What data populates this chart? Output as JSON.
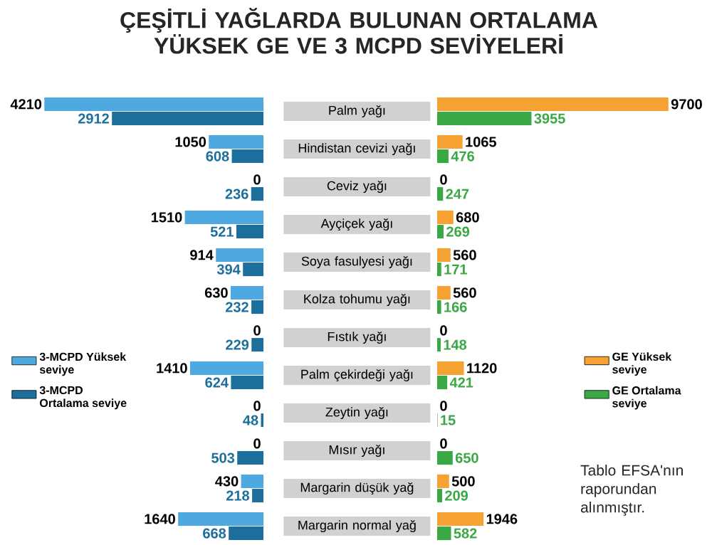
{
  "chart_data": [
    {
      "type": "bar",
      "orientation": "horizontal",
      "title": "ÇEŞİTLİ YAĞLARDA BULUNAN ORTALAMA YÜKSEK GE VE 3 MCPD SEVİYELERİ",
      "categories": [
        "Palm yağı",
        "Hindistan cevizi yağı",
        "Ceviz yağı",
        "Ayçiçek yağı",
        "Soya fasulyesi yağı",
        "Kolza tohumu yağı",
        "Fıstık yağı",
        "Palm çekirdeği yağı",
        "Zeytin yağı",
        "Mısır yağı",
        "Margarin düşük yağ",
        "Margarin normal yağ"
      ],
      "series": [
        {
          "name": "3-MCPD Yüksek seviye",
          "color": "#4fa9e1",
          "values": [
            4210,
            1050,
            0,
            1510,
            914,
            630,
            0,
            1410,
            0,
            0,
            430,
            1640
          ]
        },
        {
          "name": "3-MCPD Ortalama seviye",
          "color": "#1c6e9c",
          "values": [
            2912,
            608,
            236,
            521,
            394,
            232,
            229,
            624,
            48,
            503,
            218,
            668
          ]
        }
      ],
      "data_labels": true,
      "legend": "left",
      "tick_labels": "y"
    },
    {
      "type": "bar",
      "orientation": "horizontal",
      "categories": [
        null,
        null,
        null,
        null,
        null,
        null,
        null,
        null,
        null,
        null,
        null,
        null
      ],
      "series": [
        {
          "name": "GE Yüksek seviye",
          "color": "#f6a233",
          "values": [
            9700,
            1065,
            0,
            680,
            560,
            560,
            0,
            1120,
            0,
            0,
            500,
            1946
          ]
        },
        {
          "name": "GE Ortalama seviye",
          "color": "#3aa845",
          "values": [
            3955,
            476,
            247,
            269,
            171,
            166,
            148,
            421,
            15,
            650,
            209,
            582
          ]
        }
      ],
      "data_labels": true,
      "legend": "right",
      "tick_labels": false,
      "annotations": [
        "Tablo EFSA'nın raporundan alınmıştır."
      ]
    }
  ]
}
